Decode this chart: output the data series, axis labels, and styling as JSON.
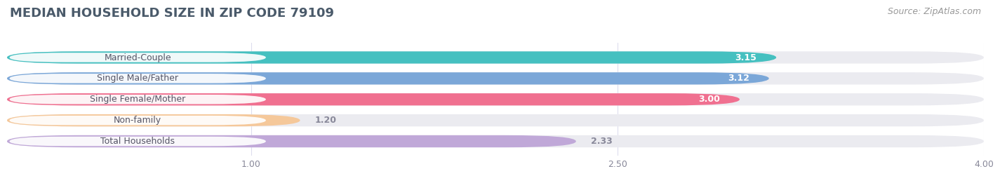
{
  "title": "MEDIAN HOUSEHOLD SIZE IN ZIP CODE 79109",
  "source": "Source: ZipAtlas.com",
  "categories": [
    "Married-Couple",
    "Single Male/Father",
    "Single Female/Mother",
    "Non-family",
    "Total Households"
  ],
  "values": [
    3.15,
    3.12,
    3.0,
    1.2,
    2.33
  ],
  "bar_colors": [
    "#45c0c0",
    "#7ba7d8",
    "#f07090",
    "#f5c89a",
    "#c0a8d8"
  ],
  "bar_labels": [
    "3.15",
    "3.12",
    "3.00",
    "1.20",
    "2.33"
  ],
  "label_dark": [
    false,
    false,
    false,
    true,
    true
  ],
  "xlim": [
    0,
    4.0
  ],
  "xticks": [
    1.0,
    2.5,
    4.0
  ],
  "xtick_labels": [
    "1.00",
    "2.50",
    "4.00"
  ],
  "background_color": "#ffffff",
  "bar_track_color": "#ebebf0",
  "title_fontsize": 13,
  "source_fontsize": 9,
  "label_fontsize": 9,
  "value_fontsize": 9,
  "tick_fontsize": 9,
  "bar_height": 0.58,
  "title_color": "#4a5a6a",
  "source_color": "#999999",
  "label_text_color": "#555566",
  "value_color_inside": "#ffffff",
  "value_color_outside": "#888899"
}
